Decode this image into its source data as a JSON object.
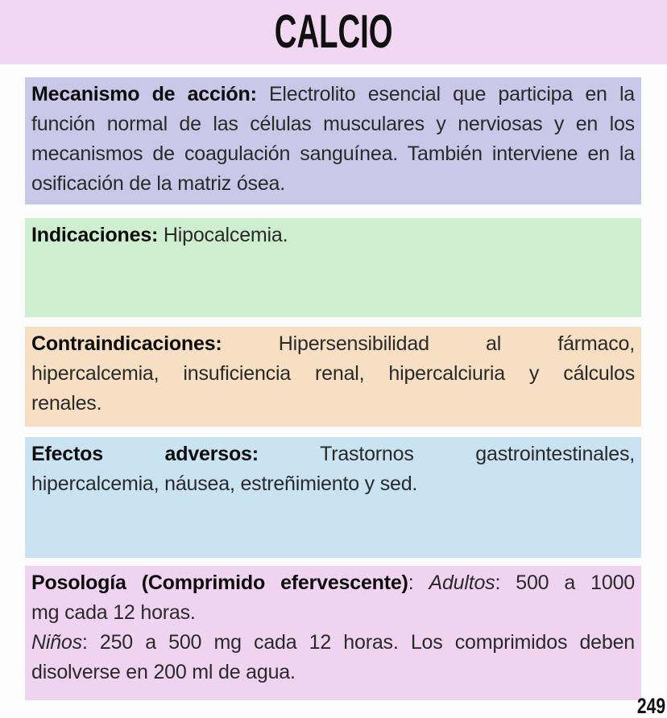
{
  "title": "CALCIO",
  "page_number": "249",
  "colors": {
    "page_bg": "#fdfdfd",
    "header_bg": "#f2d7f2",
    "mecanismo_bg": "#cbc7e8",
    "indicaciones_bg": "#cdefd0",
    "contraindicaciones_bg": "#f6dfc2",
    "efectos_bg": "#c9e3f2",
    "posologia_bg": "#f0d3f0",
    "text": "#2a2a2a",
    "label_text": "#0c0c0c"
  },
  "sections": {
    "mecanismo": {
      "label": "Mecanismo de acción:",
      "lines": [
        "Electrolito esencial que participa en la",
        "función normal de las células musculares y nerviosas y en los",
        "mecanismos de coagulación sanguínea. También interviene en la",
        "osificación de la matriz ósea."
      ]
    },
    "indicaciones": {
      "label": "Indicaciones:",
      "lines": [
        "Hipocalcemia."
      ]
    },
    "contraindicaciones": {
      "label": "Contraindicaciones:",
      "lines": [
        "Hipersensibilidad al fármaco,",
        "hipercalcemia, insuficiencia renal, hipercalciuria y cálculos",
        "renales."
      ]
    },
    "efectos": {
      "label": "Efectos adversos:",
      "lines": [
        "Trastornos gastrointestinales,",
        "hipercalcemia, náusea, estreñimiento y sed."
      ]
    },
    "posologia": {
      "label": "Posología (Comprimido efervescente)",
      "colon": ":",
      "adultos_label": "Adultos",
      "adultos_text": ": 500 a 1000",
      "line2": "mg cada 12 horas.",
      "ninos_label": "Niños",
      "ninos_text": ": 250 a 500 mg cada 12 horas. Los comprimidos deben",
      "line4": "disolverse en 200 ml de agua."
    }
  }
}
